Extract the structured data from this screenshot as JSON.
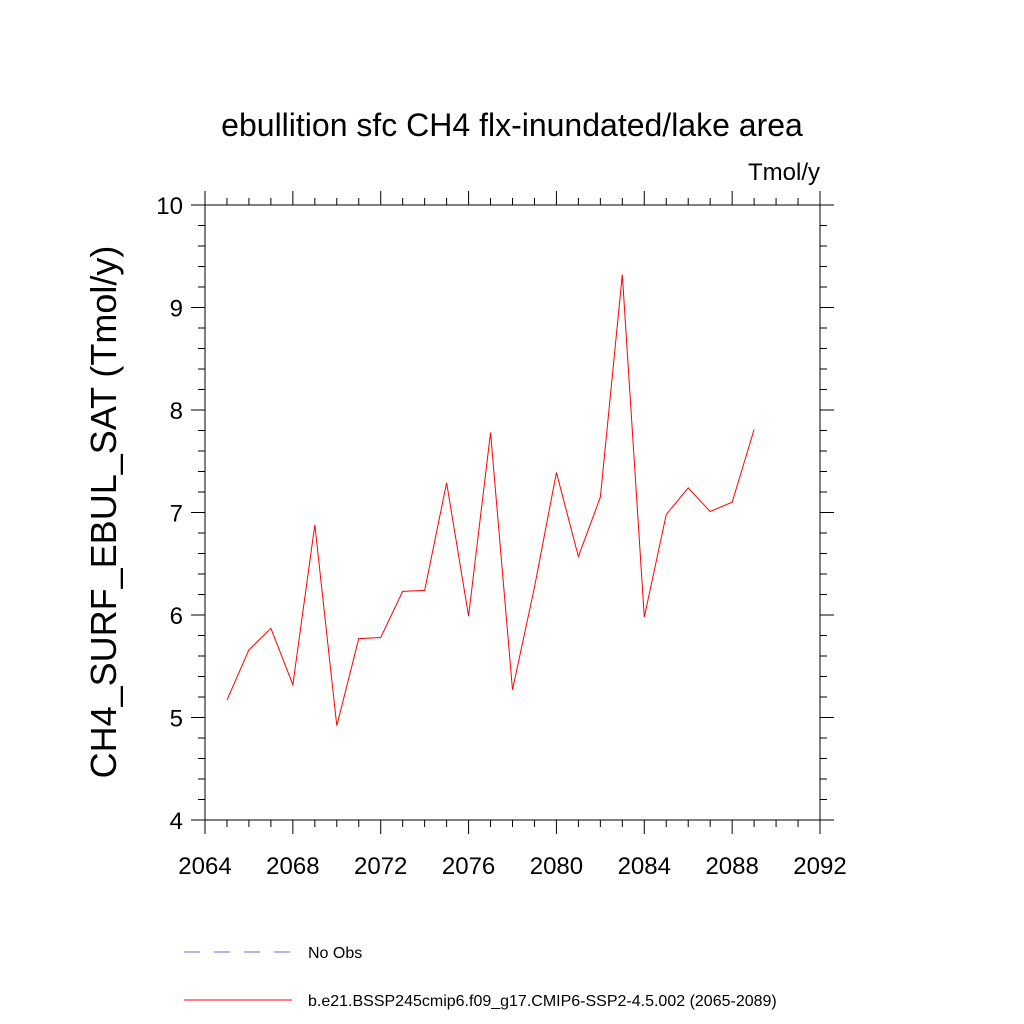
{
  "chart_data": {
    "type": "line",
    "title": "ebullition sfc CH4 flx-inundated/lake area",
    "units": "Tmol/y",
    "xlabel": "",
    "ylabel": "CH4_SURF_EBUL_SAT  (Tmol/y)",
    "xlim": [
      2064,
      2092
    ],
    "ylim": [
      4,
      10
    ],
    "x_ticks": [
      "2064",
      "2068",
      "2072",
      "2076",
      "2080",
      "2084",
      "2088",
      "2092"
    ],
    "y_ticks": [
      "4",
      "5",
      "6",
      "7",
      "8",
      "9",
      "10"
    ],
    "series": [
      {
        "name": "b.e21.BSSP245cmip6.f09_g17.CMIP6-SSP2-4.5.002 (2065-2089)",
        "color": "#ff0000",
        "style": "solid",
        "x": [
          2065,
          2066,
          2067,
          2068,
          2069,
          2070,
          2071,
          2072,
          2073,
          2074,
          2075,
          2076,
          2077,
          2078,
          2079,
          2080,
          2081,
          2082,
          2083,
          2084,
          2085,
          2086,
          2087,
          2088,
          2089
        ],
        "values": [
          5.17,
          5.66,
          5.87,
          5.32,
          6.88,
          4.92,
          5.77,
          5.78,
          6.23,
          6.24,
          7.29,
          5.99,
          7.78,
          5.27,
          6.27,
          7.39,
          6.57,
          7.15,
          9.32,
          5.98,
          6.98,
          7.24,
          7.01,
          7.1,
          7.81
        ]
      }
    ],
    "legend": [
      {
        "label": "No Obs",
        "color": "#6a6ad6",
        "style": "dashed"
      },
      {
        "label": "b.e21.BSSP245cmip6.f09_g17.CMIP6-SSP2-4.5.002 (2065-2089)",
        "color": "#ff0000",
        "style": "solid"
      }
    ],
    "legend_position": "bottom-left"
  }
}
